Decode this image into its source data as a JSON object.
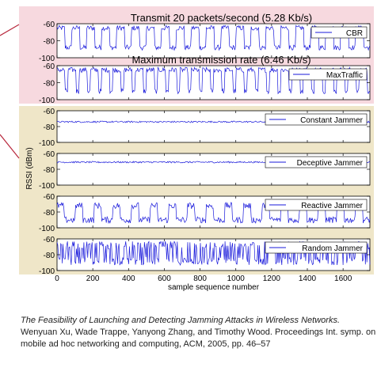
{
  "chart_data": [
    {
      "type": "line",
      "panel": "CBR",
      "title": "Transmit 20 packets/second (5.28 Kb/s)",
      "legend": "CBR",
      "legend_position": "top-right",
      "yticks": [
        -60,
        -80,
        -100
      ],
      "ylim": [
        -100,
        -60
      ],
      "xlim": [
        0,
        1750
      ],
      "pattern": {
        "kind": "periodic",
        "period": 20,
        "high": -65,
        "low": -88,
        "duty": 0.55,
        "noise": 3
      },
      "background": "#f7d9df"
    },
    {
      "type": "line",
      "panel": "MaxTraffic",
      "title": "Maximum transmission rate (6.46 Kb/s)",
      "legend": "MaxTraffic",
      "legend_position": "top-right",
      "yticks": [
        -60,
        -80,
        -100
      ],
      "ylim": [
        -100,
        -60
      ],
      "xlim": [
        0,
        1750
      ],
      "pattern": {
        "kind": "periodic",
        "period": 15,
        "high": -65,
        "low": -90,
        "duty": 0.7,
        "noise": 3
      },
      "background": "#f7d9df"
    },
    {
      "type": "line",
      "panel": "Constant Jammer",
      "legend": "Constant Jammer",
      "legend_position": "top-right",
      "yticks": [
        -60,
        -80,
        -100
      ],
      "ylim": [
        -100,
        -60
      ],
      "xlim": [
        0,
        1750
      ],
      "pattern": {
        "kind": "flat",
        "level": -74,
        "noise": 1
      },
      "background": "#efe6c8"
    },
    {
      "type": "line",
      "panel": "Deceptive Jammer",
      "legend": "Deceptive Jammer",
      "legend_position": "top-right",
      "yticks": [
        -60,
        -80,
        -100
      ],
      "ylim": [
        -100,
        -60
      ],
      "xlim": [
        0,
        1750
      ],
      "pattern": {
        "kind": "flat",
        "level": -71,
        "noise": 1
      },
      "background": "#efe6c8"
    },
    {
      "type": "line",
      "panel": "Reactive Jammer",
      "legend": "Reactive Jammer",
      "legend_position": "top-right",
      "yticks": [
        -60,
        -80,
        -100
      ],
      "ylim": [
        -100,
        -60
      ],
      "xlim": [
        0,
        1750
      ],
      "pattern": {
        "kind": "periodic",
        "period": 25,
        "high": -72,
        "low": -90,
        "duty": 0.4,
        "noise": 4
      },
      "background": "#efe6c8"
    },
    {
      "type": "line",
      "panel": "Random Jammer",
      "legend": "Random Jammer",
      "legend_position": "top-right",
      "yticks": [
        -60,
        -80,
        -100
      ],
      "ylim": [
        -100,
        -60
      ],
      "xlim": [
        0,
        1750
      ],
      "xticks": [
        0,
        200,
        400,
        600,
        800,
        1000,
        1200,
        1400,
        1600
      ],
      "xlabel": "sample sequence number",
      "pattern": {
        "kind": "random",
        "high": -68,
        "low": -88,
        "noise": 5
      },
      "background": "#efe6c8"
    }
  ],
  "shared": {
    "ylabel": "RSSI (dBm)",
    "line_color": "#1a1adb",
    "axis_color": "#000000",
    "bracket_color": "#b8283c"
  },
  "caption": {
    "title": "The Feasibility of Launching and Detecting Jamming Attacks in Wireless Networks.",
    "authors": "Wenyuan Xu, Wade Trappe, Yanyong Zhang, and Timothy Wood. Proceedings Int. symp. on mobile ad hoc networking and computing, ACM, 2005, pp. 46–57"
  }
}
